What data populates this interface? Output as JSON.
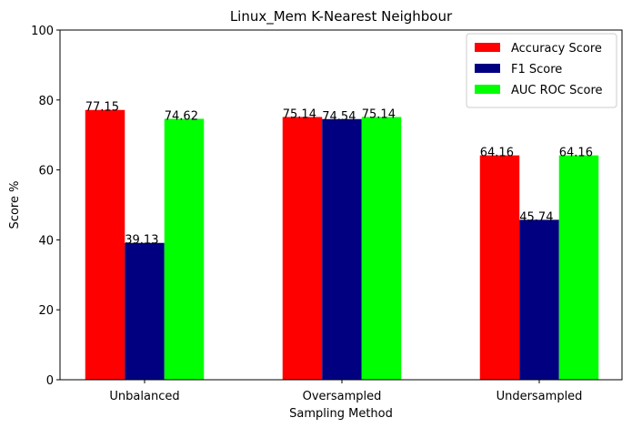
{
  "chart_data": {
    "type": "bar",
    "title": "Linux_Mem K-Nearest Neighbour",
    "xlabel": "Sampling Method",
    "ylabel": "Score %",
    "ylim": [
      0,
      100
    ],
    "yticks": [
      0,
      20,
      40,
      60,
      80,
      100
    ],
    "categories": [
      "Unbalanced",
      "Oversampled",
      "Undersampled"
    ],
    "series": [
      {
        "name": "Accuracy Score",
        "color": "#ff0000",
        "values": [
          77.15,
          75.14,
          64.16
        ]
      },
      {
        "name": "F1 Score",
        "color": "#000080",
        "values": [
          39.13,
          74.54,
          45.74
        ]
      },
      {
        "name": "AUC ROC Score",
        "color": "#00ff00",
        "values": [
          74.62,
          75.14,
          64.16
        ]
      }
    ],
    "grid": false,
    "legend": "top-right",
    "data_labels": true
  }
}
